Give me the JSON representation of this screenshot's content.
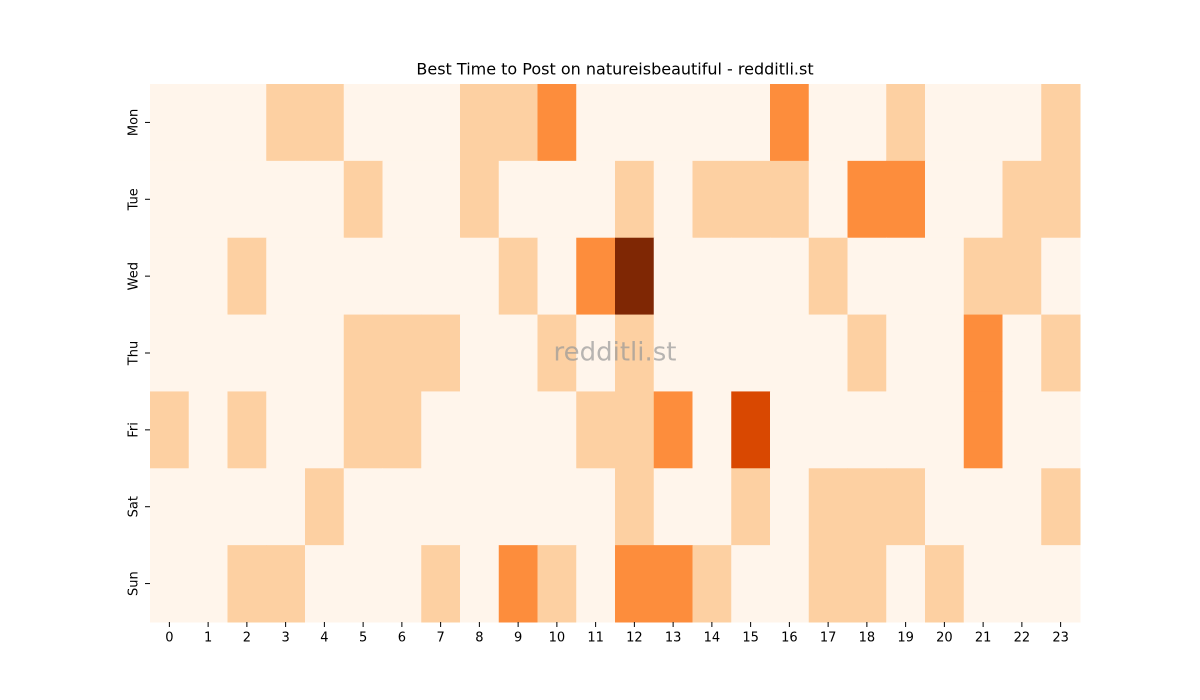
{
  "chart_data": {
    "type": "heatmap",
    "title": "Best Time to Post on natureisbeautiful - redditli.st",
    "watermark": "redditli.st",
    "x": [
      0,
      1,
      2,
      3,
      4,
      5,
      6,
      7,
      8,
      9,
      10,
      11,
      12,
      13,
      14,
      15,
      16,
      17,
      18,
      19,
      20,
      21,
      22,
      23
    ],
    "y": [
      "Mon",
      "Tue",
      "Wed",
      "Thu",
      "Fri",
      "Sat",
      "Sun"
    ],
    "values": [
      [
        0,
        0,
        0,
        1,
        1,
        0,
        0,
        0,
        1,
        1,
        2,
        0,
        0,
        0,
        0,
        0,
        2,
        0,
        0,
        1,
        0,
        0,
        0,
        1
      ],
      [
        0,
        0,
        0,
        0,
        0,
        1,
        0,
        0,
        1,
        0,
        0,
        0,
        1,
        0,
        1,
        1,
        1,
        0,
        2,
        2,
        0,
        0,
        1,
        1
      ],
      [
        0,
        0,
        1,
        0,
        0,
        0,
        0,
        0,
        0,
        1,
        0,
        2,
        4,
        0,
        0,
        0,
        0,
        1,
        0,
        0,
        0,
        1,
        1,
        0
      ],
      [
        0,
        0,
        0,
        0,
        0,
        1,
        1,
        1,
        0,
        0,
        1,
        0,
        1,
        0,
        0,
        0,
        0,
        0,
        1,
        0,
        0,
        2,
        0,
        1
      ],
      [
        1,
        0,
        1,
        0,
        0,
        1,
        1,
        0,
        0,
        0,
        0,
        1,
        1,
        2,
        0,
        3,
        0,
        0,
        0,
        0,
        0,
        2,
        0,
        0
      ],
      [
        0,
        0,
        0,
        0,
        1,
        0,
        0,
        0,
        0,
        0,
        0,
        0,
        1,
        0,
        0,
        1,
        0,
        1,
        1,
        1,
        0,
        0,
        0,
        1
      ],
      [
        0,
        0,
        1,
        1,
        0,
        0,
        0,
        1,
        0,
        2,
        1,
        0,
        2,
        2,
        1,
        0,
        0,
        1,
        1,
        0,
        1,
        0,
        0,
        0
      ]
    ],
    "vmin": 0,
    "vmax": 4,
    "colors": [
      "#fff5eb",
      "#fdd0a2",
      "#fd8d3c",
      "#d94801",
      "#7f2704"
    ]
  }
}
